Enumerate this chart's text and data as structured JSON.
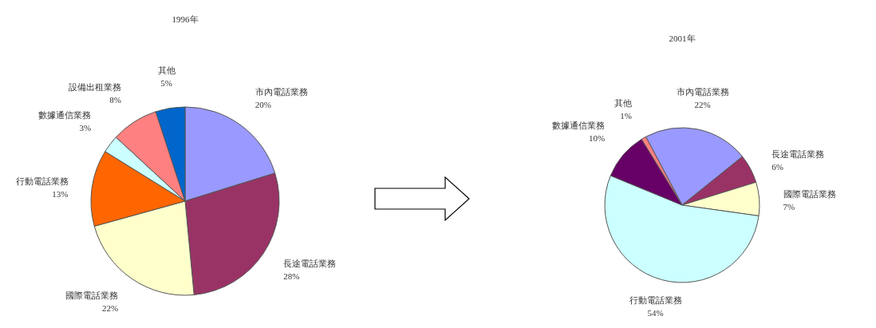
{
  "chart_data": [
    {
      "type": "pie",
      "title": "1996年",
      "categories": [
        "市內電話業務",
        "長途電話業務",
        "國際電話業務",
        "行動電話業務",
        "數據通信業務",
        "設備出租業務",
        "其他"
      ],
      "values": [
        20,
        28,
        22,
        13,
        3,
        8,
        5
      ],
      "value_labels": [
        "20%",
        "28%",
        "22%",
        "13%",
        "3%",
        "8%",
        "5%"
      ],
      "colors": [
        "#9999ff",
        "#993366",
        "#ffffcc",
        "#ff6600",
        "#ccffff",
        "#ff8080",
        "#0066cc"
      ]
    },
    {
      "type": "pie",
      "title": "2001年",
      "categories": [
        "市內電話業務",
        "長途電話業務",
        "國際電話業務",
        "行動電話業務",
        "數據通信業務",
        "其他"
      ],
      "values": [
        22,
        6,
        7,
        54,
        10,
        1
      ],
      "value_labels": [
        "22%",
        "6%",
        "7%",
        "54%",
        "10%",
        "1%"
      ],
      "colors": [
        "#9999ff",
        "#993366",
        "#ffffcc",
        "#ccffff",
        "#660066",
        "#ff8080"
      ]
    }
  ]
}
